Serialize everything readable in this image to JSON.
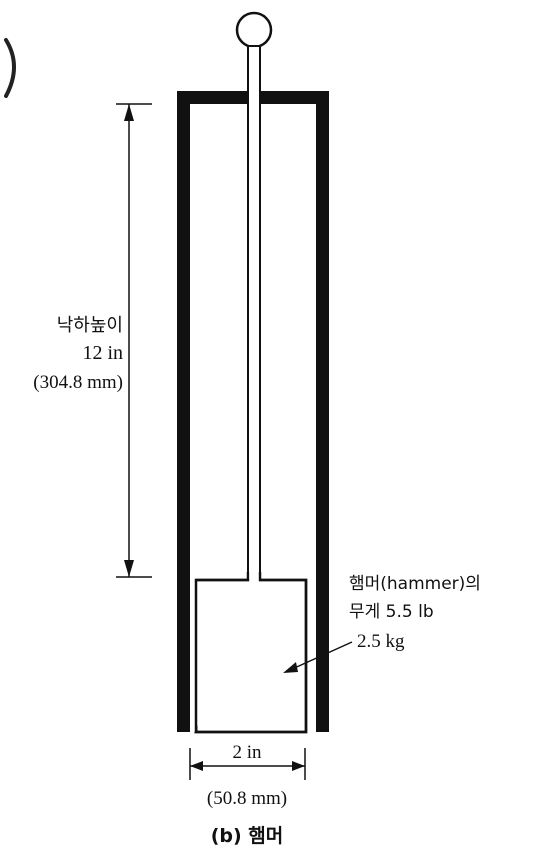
{
  "figure": {
    "drop_height": {
      "title": "낙하높이",
      "inches": "12 in",
      "mm": "(304.8 mm)"
    },
    "hammer_weight": {
      "line1": "햄머(hammer)의",
      "line2": "무게 5.5 lb",
      "line3": "2.5 kg"
    },
    "width": {
      "inches": "2 in",
      "mm": "(50.8 mm)"
    },
    "caption": "(b) 햄머"
  },
  "colors": {
    "ink": "#111111",
    "background": "#ffffff"
  },
  "icons": {
    "top_left_mark": "parenthesis-fragment"
  }
}
